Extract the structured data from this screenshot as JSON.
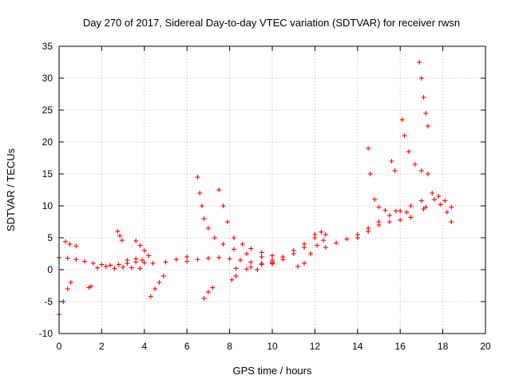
{
  "chart_data": {
    "type": "scatter",
    "title": "Day 270 of 2017, Sidereal Day-to-day VTEC variation (SDTVAR) for receiver rwsn",
    "xlabel": "GPS time / hours",
    "ylabel": "SDTVAR / TECUs",
    "xlim": [
      0,
      20
    ],
    "ylim": [
      -10,
      35
    ],
    "xticks": [
      0,
      2,
      4,
      6,
      8,
      10,
      12,
      14,
      16,
      18,
      20
    ],
    "yticks": [
      -10,
      -5,
      0,
      5,
      10,
      15,
      20,
      25,
      30,
      35
    ],
    "grid": true,
    "marker": "+",
    "color": "#ff0000",
    "series": [
      {
        "name": "s1",
        "x": [
          0.0,
          0.2,
          0.4,
          0.55
        ],
        "y": [
          -7.0,
          -5.0,
          -3.0,
          -2.0
        ]
      },
      {
        "name": "s2",
        "x": [
          0.0,
          0.4,
          0.8,
          1.2,
          1.6,
          2.0,
          2.4,
          2.8,
          3.2,
          3.6,
          4.0
        ],
        "y": [
          1.9,
          1.8,
          1.6,
          1.3,
          1.0,
          0.8,
          0.7,
          0.8,
          1.0,
          1.2,
          1.1
        ]
      },
      {
        "name": "s3",
        "x": [
          0.3,
          0.5,
          0.8
        ],
        "y": [
          4.4,
          4.0,
          3.7
        ]
      },
      {
        "name": "s4",
        "x": [
          1.4,
          1.5
        ],
        "y": [
          -2.8,
          -2.6
        ]
      },
      {
        "name": "s5",
        "x": [
          1.8,
          2.2,
          2.6,
          3.0,
          3.4,
          3.8
        ],
        "y": [
          0.3,
          0.5,
          0.2,
          0.4,
          0.3,
          0.2
        ]
      },
      {
        "name": "s6",
        "x": [
          2.75,
          2.85,
          2.95
        ],
        "y": [
          6.0,
          5.3,
          4.6
        ]
      },
      {
        "name": "s7",
        "x": [
          3.2,
          3.6,
          3.9
        ],
        "y": [
          1.5,
          1.7,
          1.5
        ]
      },
      {
        "name": "s8",
        "x": [
          3.6,
          3.8,
          4.0,
          4.2
        ],
        "y": [
          4.5,
          3.8,
          3.0,
          2.2
        ]
      },
      {
        "name": "s9",
        "x": [
          4.3,
          4.5,
          4.7,
          4.9
        ],
        "y": [
          -4.2,
          -3.0,
          -2.0,
          -1.0
        ]
      },
      {
        "name": "s10",
        "x": [
          4.4,
          5.0,
          5.5,
          6.0
        ],
        "y": [
          1.0,
          1.2,
          1.6,
          2.0
        ]
      },
      {
        "name": "s11",
        "x": [
          6.0,
          6.5,
          7.0,
          7.5,
          8.0,
          8.5,
          9.0,
          9.5,
          10.0
        ],
        "y": [
          1.3,
          1.6,
          1.8,
          1.9,
          1.7,
          1.5,
          1.2,
          1.0,
          0.9
        ]
      },
      {
        "name": "s12",
        "x": [
          6.5,
          6.6,
          6.7,
          6.8,
          7.0,
          7.3,
          7.7,
          8.2,
          8.8,
          9.5,
          10.0
        ],
        "y": [
          14.5,
          12.0,
          10.0,
          8.0,
          6.5,
          5.0,
          4.0,
          3.2,
          2.5,
          2.0,
          1.5
        ]
      },
      {
        "name": "s13",
        "x": [
          7.5,
          7.7,
          7.9,
          8.2,
          8.6,
          9.0,
          9.5,
          10.0
        ],
        "y": [
          12.5,
          10.0,
          7.5,
          5.0,
          4.0,
          3.3,
          2.7,
          2.2
        ]
      },
      {
        "name": "s14",
        "x": [
          6.8,
          7.0,
          7.2
        ],
        "y": [
          -4.5,
          -3.5,
          -2.8
        ]
      },
      {
        "name": "s15",
        "x": [
          8.1,
          8.3
        ],
        "y": [
          -1.6,
          -1.0
        ]
      },
      {
        "name": "s16",
        "x": [
          8.3,
          8.8,
          9.3
        ],
        "y": [
          0.2,
          0.1,
          0.0
        ]
      },
      {
        "name": "s17",
        "x": [
          9.0,
          9.5,
          10.0,
          10.5,
          11.0,
          11.5,
          12.0,
          12.5
        ],
        "y": [
          0.4,
          0.8,
          1.0,
          1.6,
          2.5,
          3.5,
          5.0,
          5.5
        ]
      },
      {
        "name": "s18",
        "x": [
          10.0,
          10.5,
          11.0,
          11.5,
          12.0,
          12.3
        ],
        "y": [
          1.2,
          2.0,
          3.0,
          4.0,
          5.5,
          5.9
        ]
      },
      {
        "name": "s19",
        "x": [
          11.2,
          11.5,
          11.8,
          12.1,
          12.4
        ],
        "y": [
          0.5,
          1.0,
          2.5,
          3.8,
          4.6
        ]
      },
      {
        "name": "s20",
        "x": [
          12.5,
          13.0,
          13.5,
          14.0,
          14.5,
          15.0,
          15.5,
          16.0,
          16.5,
          17.0
        ],
        "y": [
          3.5,
          4.2,
          4.8,
          5.5,
          6.5,
          7.5,
          8.5,
          9.2,
          10.0,
          10.8
        ]
      },
      {
        "name": "s21",
        "x": [
          14.5,
          14.6,
          14.8,
          15.0,
          15.3,
          15.8,
          16.3
        ],
        "y": [
          19.0,
          15.0,
          11.0,
          9.8,
          9.3,
          9.2,
          9.0
        ]
      },
      {
        "name": "s22",
        "x": [
          14.0,
          14.5,
          15.0,
          15.5,
          16.0,
          16.5
        ],
        "y": [
          5.0,
          6.0,
          7.0,
          7.5,
          7.8,
          8.2
        ]
      },
      {
        "name": "s23",
        "x": [
          15.6,
          15.75
        ],
        "y": [
          17.0,
          15.5
        ]
      },
      {
        "name": "s24",
        "x": [
          16.1,
          16.2,
          16.4,
          16.7,
          17.0,
          17.3
        ],
        "y": [
          23.5,
          21.0,
          18.5,
          16.5,
          15.5,
          15.0
        ]
      },
      {
        "name": "s25",
        "x": [
          16.9,
          17.0,
          17.1,
          17.2,
          17.3
        ],
        "y": [
          32.5,
          30.0,
          27.0,
          24.5,
          22.5
        ]
      },
      {
        "name": "s26",
        "x": [
          17.1,
          17.2
        ],
        "y": [
          9.5,
          9.8
        ]
      },
      {
        "name": "s27",
        "x": [
          17.5,
          17.8,
          18.1,
          18.4
        ],
        "y": [
          12.0,
          11.5,
          10.8,
          9.8
        ]
      },
      {
        "name": "s28",
        "x": [
          17.6,
          17.9,
          18.2,
          18.4
        ],
        "y": [
          11.0,
          10.2,
          9.0,
          7.5
        ]
      }
    ]
  }
}
